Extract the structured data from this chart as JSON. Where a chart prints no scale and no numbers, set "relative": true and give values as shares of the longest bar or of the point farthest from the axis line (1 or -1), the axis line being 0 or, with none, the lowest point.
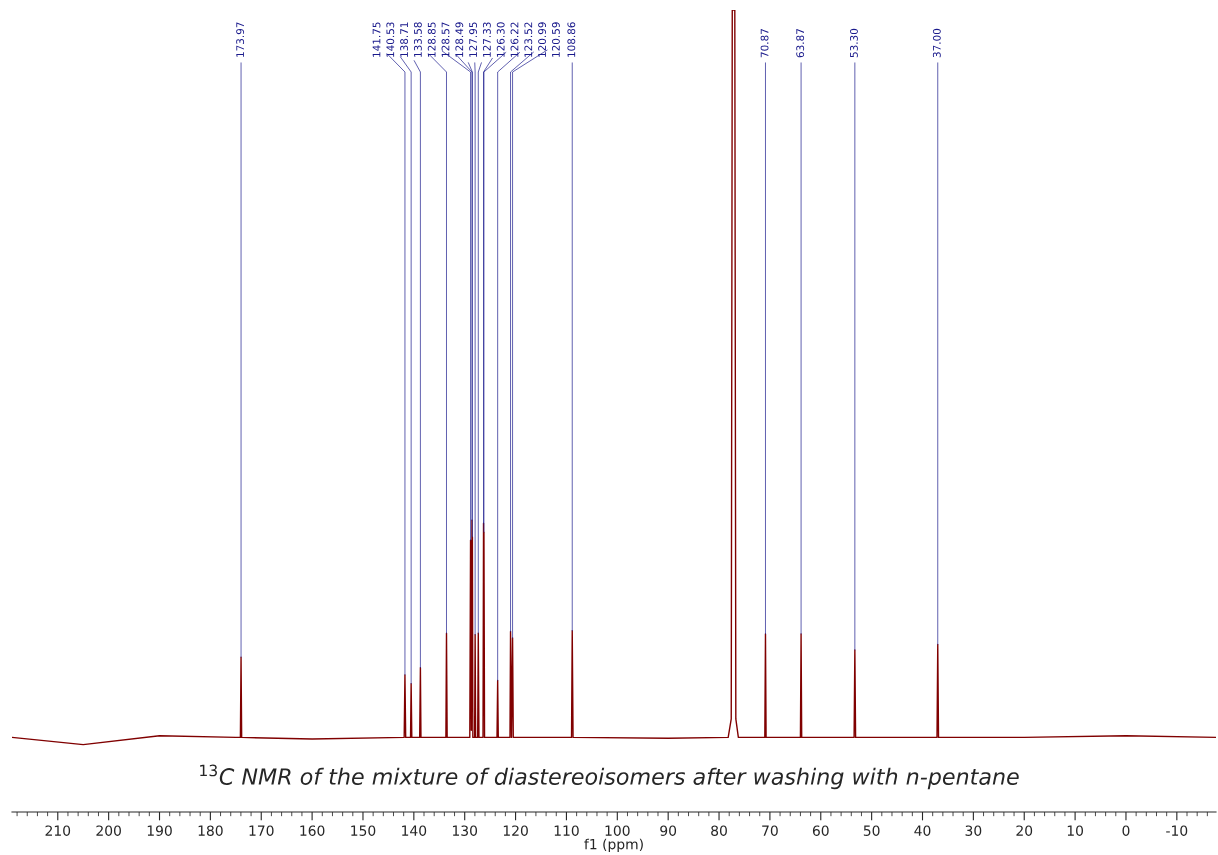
{
  "chart_data": {
    "type": "line",
    "relative": true,
    "xlabel": "f1 (ppm)",
    "xlim": [
      219,
      -17.7
    ],
    "xticks": [
      210,
      200,
      190,
      180,
      170,
      160,
      150,
      140,
      130,
      120,
      110,
      100,
      90,
      80,
      70,
      60,
      50,
      40,
      30,
      20,
      10,
      0,
      -10
    ],
    "grid": false,
    "legend": false,
    "marker": "none",
    "line_style": "solid",
    "series": [
      {
        "color": "#800000",
        "x": [
          219,
          205,
          190,
          175,
          174.1,
          173.97,
          173.85,
          160,
          141.9,
          141.75,
          141.6,
          140.65,
          140.53,
          140.4,
          138.85,
          138.71,
          138.6,
          133.7,
          133.58,
          133.45,
          129.0,
          128.85,
          128.7,
          128.57,
          128.53,
          128.49,
          128.4,
          128.05,
          127.95,
          127.85,
          127.45,
          127.33,
          127.2,
          126.4,
          126.3,
          126.26,
          126.22,
          126.1,
          123.65,
          123.52,
          123.4,
          121.1,
          120.99,
          120.8,
          120.59,
          120.45,
          109.0,
          108.86,
          108.7,
          90,
          78.2,
          77.6,
          77.4,
          76.9,
          76.7,
          76.2,
          71.0,
          70.87,
          70.75,
          64.0,
          63.87,
          63.75,
          53.45,
          53.3,
          53.15,
          37.15,
          37.0,
          36.85,
          20,
          0,
          -17.7
        ],
        "values": [
          0.093,
          0.084,
          0.095,
          0.093,
          0.093,
          0.193,
          0.093,
          0.091,
          0.093,
          0.171,
          0.093,
          0.093,
          0.16,
          0.093,
          0.093,
          0.18,
          0.093,
          0.093,
          0.223,
          0.093,
          0.093,
          0.339,
          0.102,
          0.364,
          0.129,
          0.343,
          0.093,
          0.093,
          0.221,
          0.093,
          0.093,
          0.223,
          0.093,
          0.093,
          0.36,
          0.129,
          0.349,
          0.093,
          0.093,
          0.164,
          0.093,
          0.093,
          0.225,
          0.093,
          0.217,
          0.093,
          0.093,
          0.226,
          0.093,
          0.092,
          0.093,
          0.116,
          1,
          1,
          0.116,
          0.093,
          0.093,
          0.222,
          0.093,
          0.093,
          0.222,
          0.093,
          0.093,
          0.202,
          0.093,
          0.093,
          0.209,
          0.093,
          0.093,
          0.095,
          0.093
        ]
      }
    ],
    "annotations": [
      {
        "text": "173.97",
        "x": 173.97,
        "y": 0.193
      },
      {
        "text": "141.75",
        "x": 141.75,
        "y": 0.171
      },
      {
        "text": "140.53",
        "x": 140.53,
        "y": 0.16
      },
      {
        "text": "138.71",
        "x": 138.71,
        "y": 0.18
      },
      {
        "text": "133.58",
        "x": 133.58,
        "y": 0.223
      },
      {
        "text": "128.85",
        "x": 128.85,
        "y": 0.339
      },
      {
        "text": "128.57",
        "x": 128.57,
        "y": 0.364
      },
      {
        "text": "128.49",
        "x": 128.49,
        "y": 0.343
      },
      {
        "text": "127.95",
        "x": 127.95,
        "y": 0.221
      },
      {
        "text": "127.33",
        "x": 127.33,
        "y": 0.223
      },
      {
        "text": "126.30",
        "x": 126.3,
        "y": 0.36
      },
      {
        "text": "126.22",
        "x": 126.22,
        "y": 0.349
      },
      {
        "text": "123.52",
        "x": 123.52,
        "y": 0.164
      },
      {
        "text": "120.99",
        "x": 120.99,
        "y": 0.225
      },
      {
        "text": "120.59",
        "x": 120.59,
        "y": 0.217
      },
      {
        "text": "108.86",
        "x": 108.86,
        "y": 0.226
      },
      {
        "text": "70.87",
        "x": 70.87,
        "y": 0.222
      },
      {
        "text": "63.87",
        "x": 63.87,
        "y": 0.222
      },
      {
        "text": "53.30",
        "x": 53.3,
        "y": 0.202
      },
      {
        "text": "37.00",
        "x": 37.0,
        "y": 0.209
      },
      "$^{13}$C NMR of the mixture of diastereoisomers after washing with n-pentane"
    ]
  }
}
